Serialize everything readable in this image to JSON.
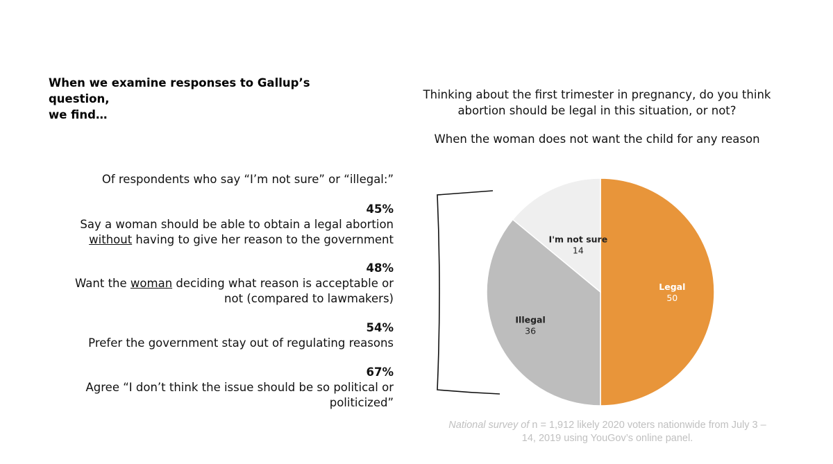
{
  "heading": {
    "line1": "When we examine responses to Gallup’s question,",
    "line2": "we find…"
  },
  "intro": "Of respondents who say “I’m not sure” or “illegal:”",
  "stats": [
    {
      "pct": "45%",
      "parts": [
        "Say a woman should be able to obtain a legal abortion",
        "without",
        " having to give her reason to the government"
      ]
    },
    {
      "pct": "48%",
      "parts": [
        "Want the ",
        "woman",
        " deciding what reason is acceptable or",
        "not (compared to lawmakers)"
      ]
    },
    {
      "pct": "54%",
      "parts": [
        "Prefer the government stay out of regulating reasons"
      ]
    },
    {
      "pct": "67%",
      "parts": [
        "Agree “I don’t think the issue should be so political or",
        "politicized”"
      ]
    }
  ],
  "question": {
    "line1": "Thinking about the first trimester in pregnancy, do you think",
    "line2": "abortion should be legal in this situation, or not?",
    "subtitle": "When the woman does not want the child for any reason"
  },
  "source": {
    "italic_part": "National survey of",
    "rest_line1": " n = 1,912 likely 2020 voters nationwide from July 3 –",
    "line2": "14, 2019 using YouGov’s online panel."
  },
  "colors": {
    "legal": "#e8953a",
    "illegal": "#bdbdbd",
    "not_sure": "#efefef",
    "bracket": "#111111"
  },
  "chart_data": {
    "type": "pie",
    "categories": [
      "Legal",
      "Illegal",
      "I'm not sure"
    ],
    "values": [
      50,
      36,
      14
    ],
    "title": "",
    "start_angle": "12 o'clock, clockwise"
  }
}
